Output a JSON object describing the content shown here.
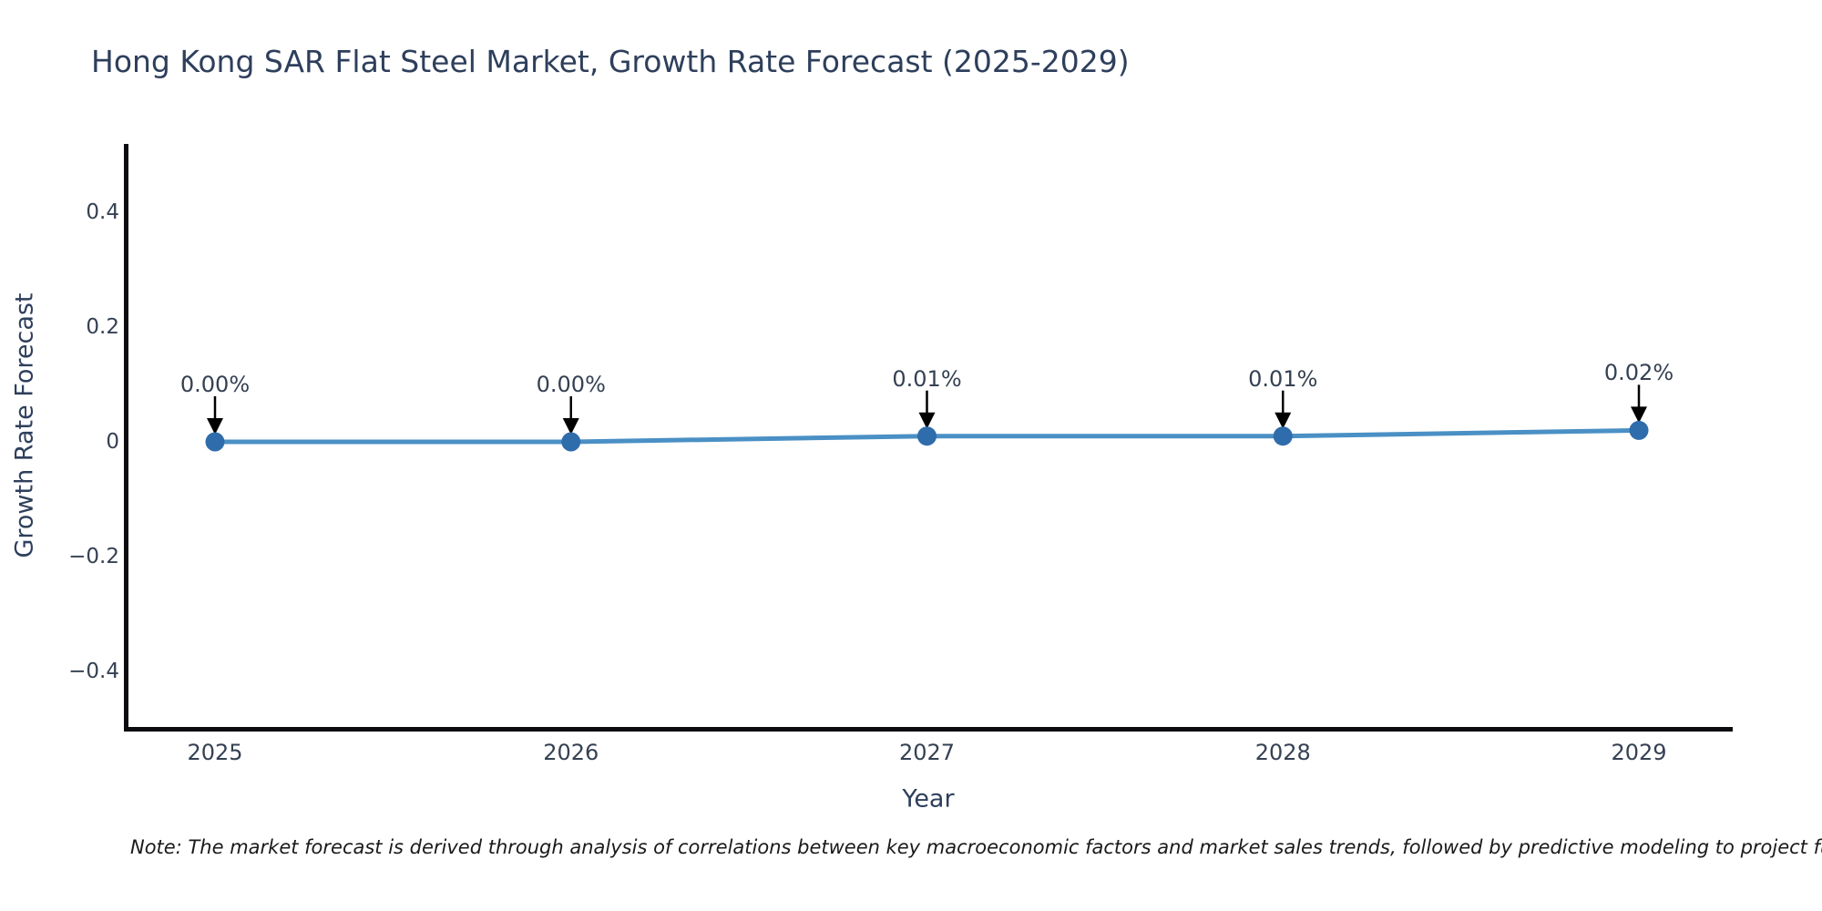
{
  "title": "Hong Kong SAR Flat Steel Market, Growth Rate Forecast (2025-2029)",
  "x_axis": {
    "label": "Year",
    "ticks": [
      "2025",
      "2026",
      "2027",
      "2028",
      "2029"
    ]
  },
  "y_axis": {
    "label": "Growth Rate Forecast",
    "ticks": [
      "0.4",
      "0.2",
      "0",
      "−0.2",
      "−0.4"
    ],
    "tick_values": [
      0.4,
      0.2,
      0,
      -0.2,
      -0.4
    ]
  },
  "note": "Note: The market forecast is derived through analysis of correlations between key macroeconomic factors and market sales trends, followed by predictive modeling to project future sal",
  "colors": {
    "line": "#4a90c5",
    "marker": "#2f6cab",
    "arrow": "#000000",
    "axis_spine": "#0c0c10",
    "title_text": "#2e3f5c",
    "tick_text": "#354153"
  },
  "chart_data": {
    "type": "line",
    "title": "Hong Kong SAR Flat Steel Market, Growth Rate Forecast (2025-2029)",
    "xlabel": "Year",
    "ylabel": "Growth Rate Forecast",
    "x": [
      2025,
      2026,
      2027,
      2028,
      2029
    ],
    "values": [
      0.0,
      0.0,
      0.01,
      0.01,
      0.02
    ],
    "point_labels": [
      "0.00%",
      "0.00%",
      "0.01%",
      "0.01%",
      "0.02%"
    ],
    "ylim": [
      -0.5,
      0.52
    ],
    "xlim": [
      2024.75,
      2029.26
    ],
    "grid": false,
    "legend": "none",
    "annotation_style": "value labels above points with black down-arrows"
  }
}
